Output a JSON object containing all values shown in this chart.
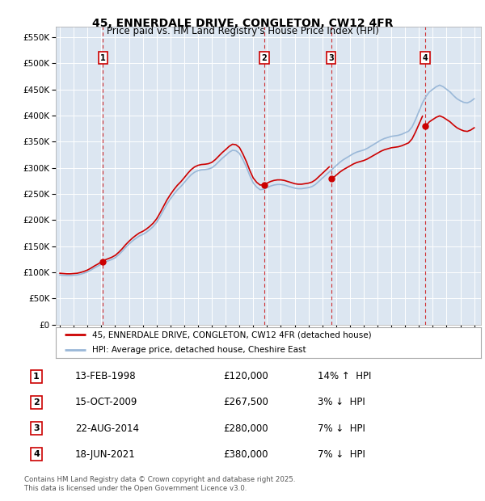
{
  "title": "45, ENNERDALE DRIVE, CONGLETON, CW12 4FR",
  "subtitle": "Price paid vs. HM Land Registry's House Price Index (HPI)",
  "yticks": [
    0,
    50000,
    100000,
    150000,
    200000,
    250000,
    300000,
    350000,
    400000,
    450000,
    500000,
    550000
  ],
  "ytick_labels": [
    "£0",
    "£50K",
    "£100K",
    "£150K",
    "£200K",
    "£250K",
    "£300K",
    "£350K",
    "£400K",
    "£450K",
    "£500K",
    "£550K"
  ],
  "xlim_start": 1994.7,
  "xlim_end": 2025.5,
  "ylim_min": 0,
  "ylim_max": 570000,
  "background_color": "#dce6f1",
  "red_line_color": "#cc0000",
  "blue_line_color": "#9ab8d8",
  "legend_label_red": "45, ENNERDALE DRIVE, CONGLETON, CW12 4FR (detached house)",
  "legend_label_blue": "HPI: Average price, detached house, Cheshire East",
  "footer": "Contains HM Land Registry data © Crown copyright and database right 2025.\nThis data is licensed under the Open Government Licence v3.0.",
  "transactions": [
    {
      "num": 1,
      "date": "13-FEB-1998",
      "price": 120000,
      "pct": "14%",
      "dir": "↑",
      "x_year": 1998.12
    },
    {
      "num": 2,
      "date": "15-OCT-2009",
      "price": 267500,
      "pct": "3%",
      "dir": "↓",
      "x_year": 2009.79
    },
    {
      "num": 3,
      "date": "22-AUG-2014",
      "price": 280000,
      "pct": "7%",
      "dir": "↓",
      "x_year": 2014.64
    },
    {
      "num": 4,
      "date": "18-JUN-2021",
      "price": 380000,
      "pct": "7%",
      "dir": "↓",
      "x_year": 2021.46
    }
  ],
  "hpi_years": [
    1995.0,
    1995.25,
    1995.5,
    1995.75,
    1996.0,
    1996.25,
    1996.5,
    1996.75,
    1997.0,
    1997.25,
    1997.5,
    1997.75,
    1998.0,
    1998.25,
    1998.5,
    1998.75,
    1999.0,
    1999.25,
    1999.5,
    1999.75,
    2000.0,
    2000.25,
    2000.5,
    2000.75,
    2001.0,
    2001.25,
    2001.5,
    2001.75,
    2002.0,
    2002.25,
    2002.5,
    2002.75,
    2003.0,
    2003.25,
    2003.5,
    2003.75,
    2004.0,
    2004.25,
    2004.5,
    2004.75,
    2005.0,
    2005.25,
    2005.5,
    2005.75,
    2006.0,
    2006.25,
    2006.5,
    2006.75,
    2007.0,
    2007.25,
    2007.5,
    2007.75,
    2008.0,
    2008.25,
    2008.5,
    2008.75,
    2009.0,
    2009.25,
    2009.5,
    2009.75,
    2010.0,
    2010.25,
    2010.5,
    2010.75,
    2011.0,
    2011.25,
    2011.5,
    2011.75,
    2012.0,
    2012.25,
    2012.5,
    2012.75,
    2013.0,
    2013.25,
    2013.5,
    2013.75,
    2014.0,
    2014.25,
    2014.5,
    2014.75,
    2015.0,
    2015.25,
    2015.5,
    2015.75,
    2016.0,
    2016.25,
    2016.5,
    2016.75,
    2017.0,
    2017.25,
    2017.5,
    2017.75,
    2018.0,
    2018.25,
    2018.5,
    2018.75,
    2019.0,
    2019.25,
    2019.5,
    2019.75,
    2020.0,
    2020.25,
    2020.5,
    2020.75,
    2021.0,
    2021.25,
    2021.5,
    2021.75,
    2022.0,
    2022.25,
    2022.5,
    2022.75,
    2023.0,
    2023.25,
    2023.5,
    2023.75,
    2024.0,
    2024.25,
    2024.5,
    2024.75,
    2025.0
  ],
  "hpi_values": [
    95000,
    94500,
    94000,
    94000,
    94500,
    95000,
    96500,
    98500,
    101000,
    104500,
    108500,
    112000,
    116000,
    119500,
    122000,
    124500,
    128000,
    133500,
    140000,
    147500,
    154000,
    160000,
    165000,
    169500,
    172500,
    176500,
    181500,
    187500,
    195500,
    206500,
    218500,
    230500,
    240500,
    249500,
    257500,
    264000,
    271500,
    279500,
    286500,
    291500,
    294500,
    296000,
    296500,
    297500,
    300000,
    305000,
    311500,
    318000,
    323500,
    329500,
    333500,
    332500,
    327500,
    315500,
    301500,
    285000,
    271000,
    263000,
    258000,
    259000,
    262000,
    265000,
    267000,
    268000,
    268000,
    267000,
    265000,
    263000,
    261000,
    260000,
    260000,
    261000,
    262000,
    264000,
    268000,
    274000,
    280000,
    286000,
    292000,
    298000,
    304000,
    310000,
    315000,
    319000,
    323000,
    327000,
    330000,
    332000,
    334000,
    337000,
    341000,
    345000,
    349000,
    353000,
    356000,
    358000,
    360000,
    361000,
    362000,
    364000,
    367000,
    370000,
    378000,
    392000,
    408000,
    424000,
    436000,
    445000,
    450000,
    455000,
    458000,
    455000,
    450000,
    445000,
    438000,
    432000,
    428000,
    425000,
    424000,
    427000,
    432000
  ],
  "red_hpi_base_1995": 110000,
  "sale_years": [
    1998.12,
    2009.79,
    2014.64,
    2021.46
  ],
  "sale_prices": [
    120000,
    267500,
    280000,
    380000
  ]
}
